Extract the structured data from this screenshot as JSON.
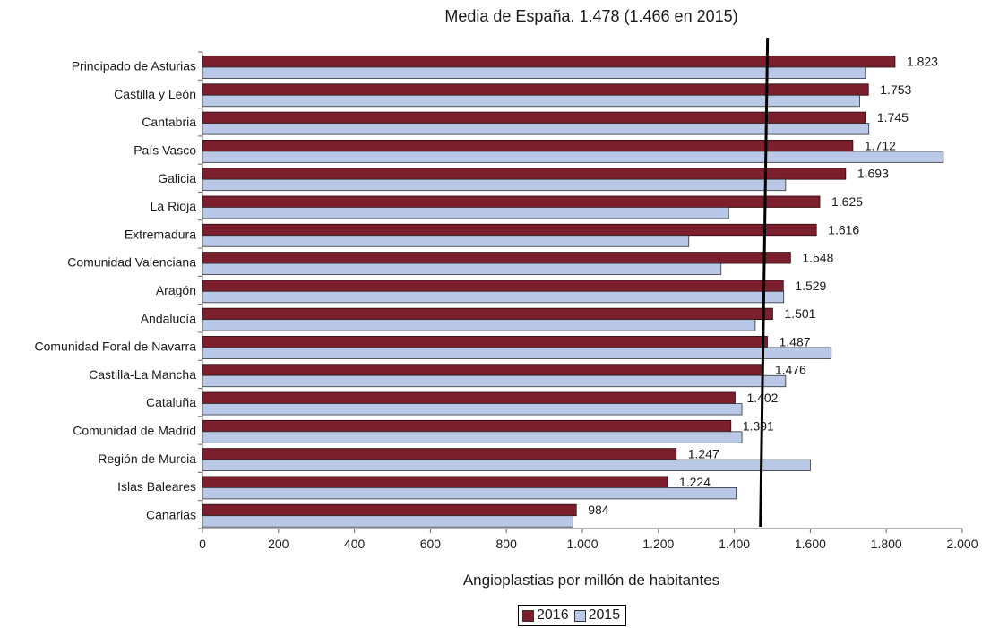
{
  "chart_data": {
    "type": "bar",
    "orientation": "horizontal",
    "title": "Media de España. 1.478 (1.466 en 2015)",
    "xlabel": "Angioplastias por millón de habitantes",
    "xlim": [
      0,
      2000
    ],
    "xticks": [
      0,
      200,
      400,
      600,
      800,
      1000,
      1200,
      1400,
      1600,
      1800,
      2000
    ],
    "xtick_labels": [
      "0",
      "200",
      "400",
      "600",
      "800",
      "1.000",
      "1.200",
      "1.400",
      "1.600",
      "1.800",
      "2.000"
    ],
    "reference_line": {
      "value": 1478
    },
    "legend_placement": "bottom-center",
    "categories": [
      "Principado de Asturias",
      "Castilla y León",
      "Cantabria",
      "País Vasco",
      "Galicia",
      "La Rioja",
      "Extremadura",
      "Comunidad Valenciana",
      "Aragón",
      "Andalucía",
      "Comunidad Foral de Navarra",
      "Castilla-La Mancha",
      "Cataluña",
      "Comunidad de Madrid",
      "Región de Murcia",
      "Islas Baleares",
      "Canarias"
    ],
    "series": [
      {
        "name": "2016",
        "color": "#7b1f2d",
        "values": [
          1823,
          1753,
          1745,
          1712,
          1693,
          1625,
          1616,
          1548,
          1529,
          1501,
          1487,
          1476,
          1402,
          1391,
          1247,
          1224,
          984
        ],
        "data_labels": [
          "1.823",
          "1.753",
          "1.745",
          "1.712",
          "1.693",
          "1.625",
          "1.616",
          "1.548",
          "1.529",
          "1.501",
          "1.487",
          "1.476",
          "1.402",
          "1.391",
          "1.247",
          "1.224",
          "984"
        ]
      },
      {
        "name": "2015",
        "color": "#b8c8e6",
        "values": [
          1745,
          1730,
          1754,
          1950,
          1535,
          1385,
          1280,
          1365,
          1530,
          1455,
          1655,
          1535,
          1420,
          1420,
          1600,
          1405,
          975
        ]
      }
    ]
  }
}
